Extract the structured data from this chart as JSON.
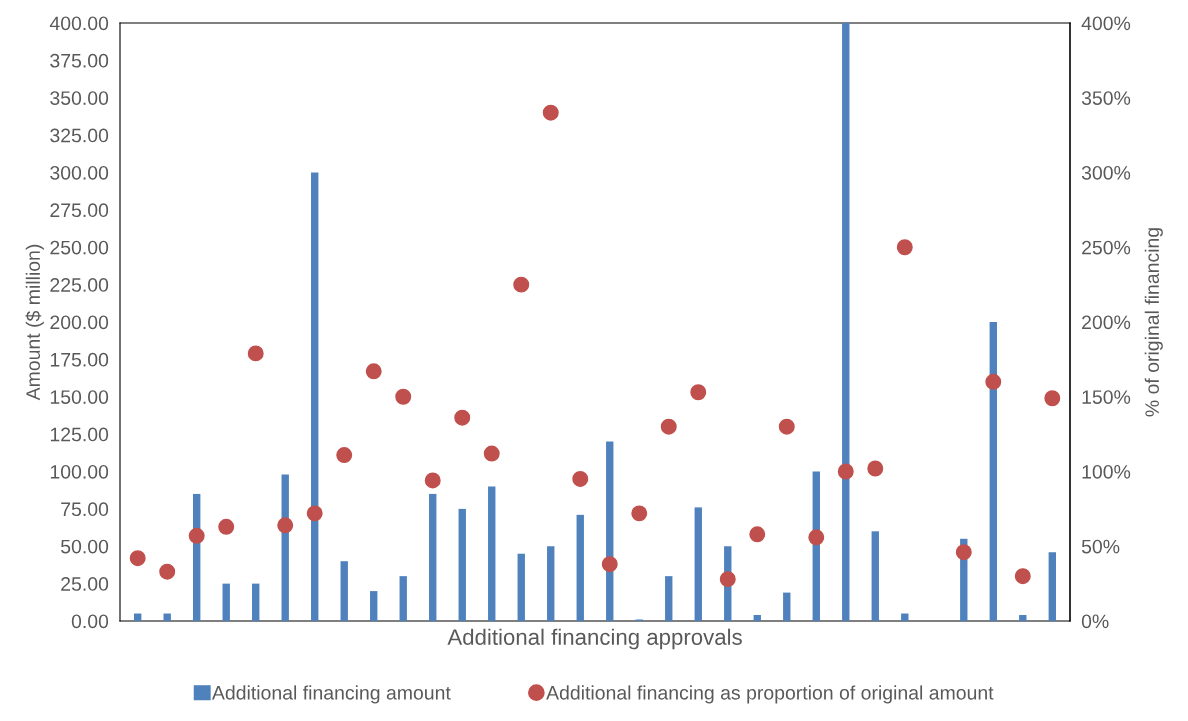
{
  "chart_data": {
    "type": "bar",
    "xlabel": "Additional financing approvals",
    "ylabel": "Amount ($ million)",
    "y2label": "% of original financing",
    "categories": [
      null,
      null,
      null,
      null,
      null,
      null,
      null,
      null,
      null,
      null,
      null,
      null,
      null,
      null,
      null,
      null,
      null,
      null,
      null,
      null,
      null,
      null,
      null,
      null,
      null,
      null,
      null,
      null,
      null,
      null,
      null,
      null
    ],
    "series": [
      {
        "name": "Additional financing amount",
        "color": "#4f81bd",
        "values": [
          5,
          5,
          85,
          25,
          25,
          98,
          300,
          40,
          20,
          30,
          85,
          75,
          90,
          45,
          50,
          71,
          120,
          1,
          30,
          76,
          50,
          4,
          19,
          100,
          400,
          60,
          5,
          null,
          55,
          200,
          4,
          46
        ]
      },
      {
        "name": "Additional financing as proportion of original amount",
        "type": "scatter",
        "axis": "y2",
        "color": "#c0504d",
        "marker": "circle",
        "values": [
          42,
          33,
          57,
          63,
          179,
          64,
          72,
          111,
          167,
          150,
          94,
          136,
          112,
          225,
          340,
          95,
          38,
          72,
          130,
          153,
          28,
          58,
          130,
          56,
          100,
          102,
          250,
          null,
          46,
          160,
          30,
          149
        ]
      }
    ],
    "ylim": [
      0,
      400
    ],
    "yticks": [
      {
        "value": 0,
        "label": "0.00"
      },
      {
        "value": 25,
        "label": "25.00"
      },
      {
        "value": 50,
        "label": "50.00"
      },
      {
        "value": 75,
        "label": "75.00"
      },
      {
        "value": 100,
        "label": "100.00"
      },
      {
        "value": 125,
        "label": "125.00"
      },
      {
        "value": 150,
        "label": "150.00"
      },
      {
        "value": 175,
        "label": "175.00"
      },
      {
        "value": 200,
        "label": "200.00"
      },
      {
        "value": 225,
        "label": "225.00"
      },
      {
        "value": 250,
        "label": "250.00"
      },
      {
        "value": 275,
        "label": "275.00"
      },
      {
        "value": 300,
        "label": "300.00"
      },
      {
        "value": 325,
        "label": "325.00"
      },
      {
        "value": 350,
        "label": "350.00"
      },
      {
        "value": 375,
        "label": "375.00"
      },
      {
        "value": 400,
        "label": "400.00"
      }
    ],
    "y2lim": [
      0,
      400
    ],
    "y2ticks": [
      {
        "value": 0,
        "label": "0%"
      },
      {
        "value": 50,
        "label": "50%"
      },
      {
        "value": 100,
        "label": "100%"
      },
      {
        "value": 150,
        "label": "150%"
      },
      {
        "value": 200,
        "label": "200%"
      },
      {
        "value": 250,
        "label": "250%"
      },
      {
        "value": 300,
        "label": "300%"
      },
      {
        "value": 350,
        "label": "350%"
      },
      {
        "value": 400,
        "label": "400%"
      }
    ],
    "legend": "bottom",
    "grid": false
  }
}
